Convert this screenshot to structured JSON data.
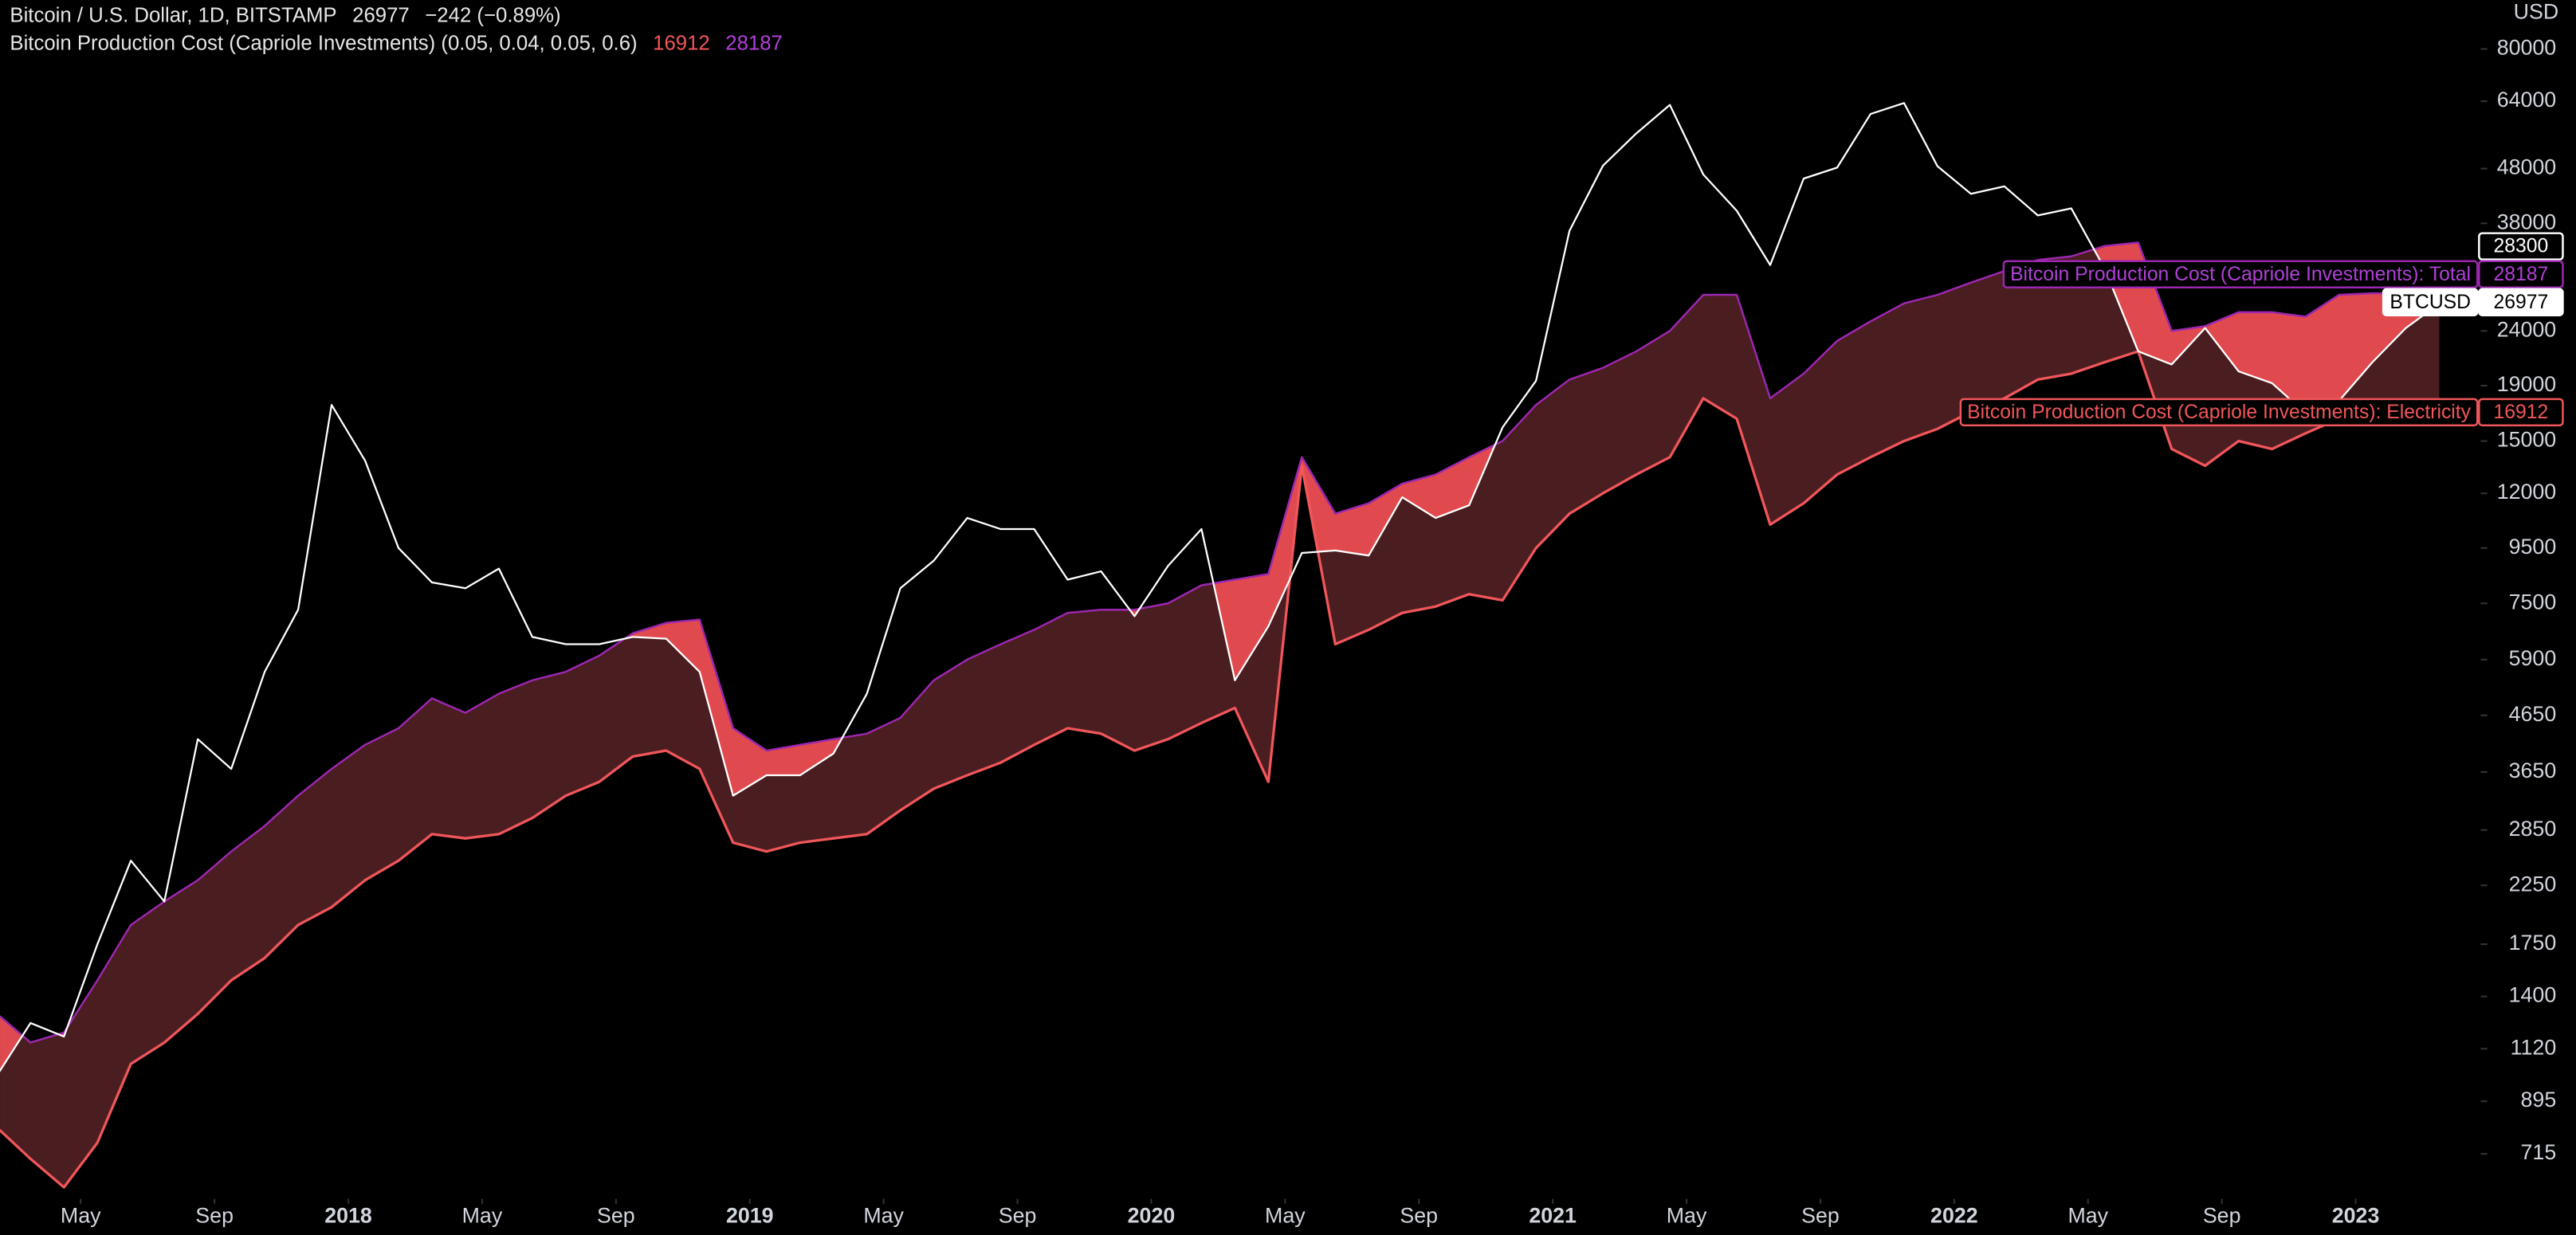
{
  "chart_data": {
    "type": "line",
    "title": "Bitcoin / U.S. Dollar, 1D, BITSTAMP",
    "change": "−242 (−0.89%)",
    "subtitle": "Bitcoin Production Cost (Capriole Investments) (0.05, 0.04, 0.05, 0.6)",
    "y_unit": "USD",
    "log_scale": true,
    "grid": false,
    "marker_price": 28300,
    "band_color": "#4a1d20",
    "deficit_color": "#e04a4f",
    "x": [
      "2017-02",
      "2017-03",
      "2017-04",
      "2017-05",
      "2017-06",
      "2017-07",
      "2017-08",
      "2017-09",
      "2017-10",
      "2017-11",
      "2017-12",
      "2018-01",
      "2018-02",
      "2018-03",
      "2018-04",
      "2018-05",
      "2018-06",
      "2018-07",
      "2018-08",
      "2018-09",
      "2018-10",
      "2018-11",
      "2018-12",
      "2019-01",
      "2019-02",
      "2019-03",
      "2019-04",
      "2019-05",
      "2019-06",
      "2019-07",
      "2019-08",
      "2019-09",
      "2019-10",
      "2019-11",
      "2019-12",
      "2020-01",
      "2020-02",
      "2020-03",
      "2020-04",
      "2020-05",
      "2020-06",
      "2020-07",
      "2020-08",
      "2020-09",
      "2020-10",
      "2020-11",
      "2020-12",
      "2021-01",
      "2021-02",
      "2021-03",
      "2021-04",
      "2021-05",
      "2021-06",
      "2021-07",
      "2021-08",
      "2021-09",
      "2021-10",
      "2021-11",
      "2021-12",
      "2022-01",
      "2022-02",
      "2022-03",
      "2022-04",
      "2022-05",
      "2022-06",
      "2022-07",
      "2022-08",
      "2022-09",
      "2022-10",
      "2022-11",
      "2022-12",
      "2023-01",
      "2023-02",
      "2023-03"
    ],
    "series": [
      {
        "name": "BTCUSD",
        "color": "#ffffff",
        "values": [
          1000,
          1250,
          1180,
          1750,
          2500,
          2100,
          4200,
          3700,
          5600,
          7300,
          17500,
          13800,
          9500,
          8200,
          8000,
          8700,
          6500,
          6300,
          6300,
          6500,
          6450,
          5600,
          3300,
          3600,
          3600,
          3950,
          5100,
          8000,
          9000,
          10800,
          10300,
          10300,
          8300,
          8600,
          7100,
          8800,
          10300,
          5400,
          6800,
          9300,
          9400,
          9200,
          11800,
          10800,
          11400,
          15900,
          19400,
          36800,
          48600,
          55800,
          63000,
          46800,
          40100,
          31800,
          46000,
          48200,
          60600,
          63500,
          48500,
          43100,
          44500,
          39300,
          40500,
          31300,
          22000,
          20800,
          24300,
          20200,
          19200,
          16900,
          17800,
          21000,
          24300,
          26977
        ]
      },
      {
        "name": "Bitcoin Production Cost (Capriole Investments): Total",
        "color": "#9c27b0",
        "values": [
          1300,
          1150,
          1200,
          1500,
          1900,
          2100,
          2300,
          2600,
          2900,
          3300,
          3700,
          4100,
          4400,
          5000,
          4700,
          5100,
          5400,
          5600,
          6000,
          6600,
          6900,
          7000,
          4400,
          4000,
          4100,
          4200,
          4300,
          4600,
          5400,
          5900,
          6300,
          6700,
          7200,
          7300,
          7300,
          7500,
          8100,
          8300,
          8500,
          14000,
          11000,
          11500,
          12500,
          13000,
          14000,
          15000,
          17500,
          19500,
          20500,
          22000,
          24000,
          28000,
          28000,
          18000,
          20000,
          23000,
          25000,
          27000,
          28000,
          29500,
          31000,
          32500,
          33000,
          34500,
          35000,
          24000,
          24500,
          26000,
          26000,
          25500,
          28000,
          28187,
          28187,
          28187
        ]
      },
      {
        "name": "Bitcoin Production Cost (Capriole Investments): Electricity",
        "color": "#f0565a",
        "values": [
          800,
          700,
          620,
          750,
          1050,
          1150,
          1300,
          1500,
          1650,
          1900,
          2050,
          2300,
          2500,
          2800,
          2750,
          2800,
          3000,
          3300,
          3500,
          3900,
          4000,
          3700,
          2700,
          2600,
          2700,
          2750,
          2800,
          3100,
          3400,
          3600,
          3800,
          4100,
          4400,
          4300,
          4000,
          4200,
          4500,
          4800,
          3500,
          13500,
          6300,
          6700,
          7200,
          7400,
          7800,
          7600,
          9500,
          11000,
          12000,
          13000,
          14000,
          18000,
          16500,
          10500,
          11500,
          13000,
          14000,
          15000,
          15800,
          17000,
          18000,
          19500,
          20000,
          21000,
          22000,
          14500,
          13500,
          15000,
          14500,
          15500,
          16500,
          16800,
          16912,
          16912
        ]
      }
    ],
    "xlim": [
      "2017-02",
      "2023-04"
    ],
    "xticks": [
      {
        "value": "2017-05",
        "label": "May"
      },
      {
        "value": "2017-09",
        "label": "Sep"
      },
      {
        "value": "2018-01",
        "label": "2018"
      },
      {
        "value": "2018-05",
        "label": "May"
      },
      {
        "value": "2018-09",
        "label": "Sep"
      },
      {
        "value": "2019-01",
        "label": "2019"
      },
      {
        "value": "2019-05",
        "label": "May"
      },
      {
        "value": "2019-09",
        "label": "Sep"
      },
      {
        "value": "2020-01",
        "label": "2020"
      },
      {
        "value": "2020-05",
        "label": "May"
      },
      {
        "value": "2020-09",
        "label": "Sep"
      },
      {
        "value": "2021-01",
        "label": "2021"
      },
      {
        "value": "2021-05",
        "label": "May"
      },
      {
        "value": "2021-09",
        "label": "Sep"
      },
      {
        "value": "2022-01",
        "label": "2022"
      },
      {
        "value": "2022-05",
        "label": "May"
      },
      {
        "value": "2022-09",
        "label": "Sep"
      },
      {
        "value": "2023-01",
        "label": "2023"
      }
    ],
    "ylim": [
      590,
      98600
    ],
    "yticks": [
      80000,
      64000,
      48000,
      38000,
      24000,
      19000,
      15000,
      12000,
      9500,
      7500,
      5900,
      4650,
      3650,
      2850,
      2250,
      1750,
      1400,
      1120,
      895,
      715
    ]
  }
}
